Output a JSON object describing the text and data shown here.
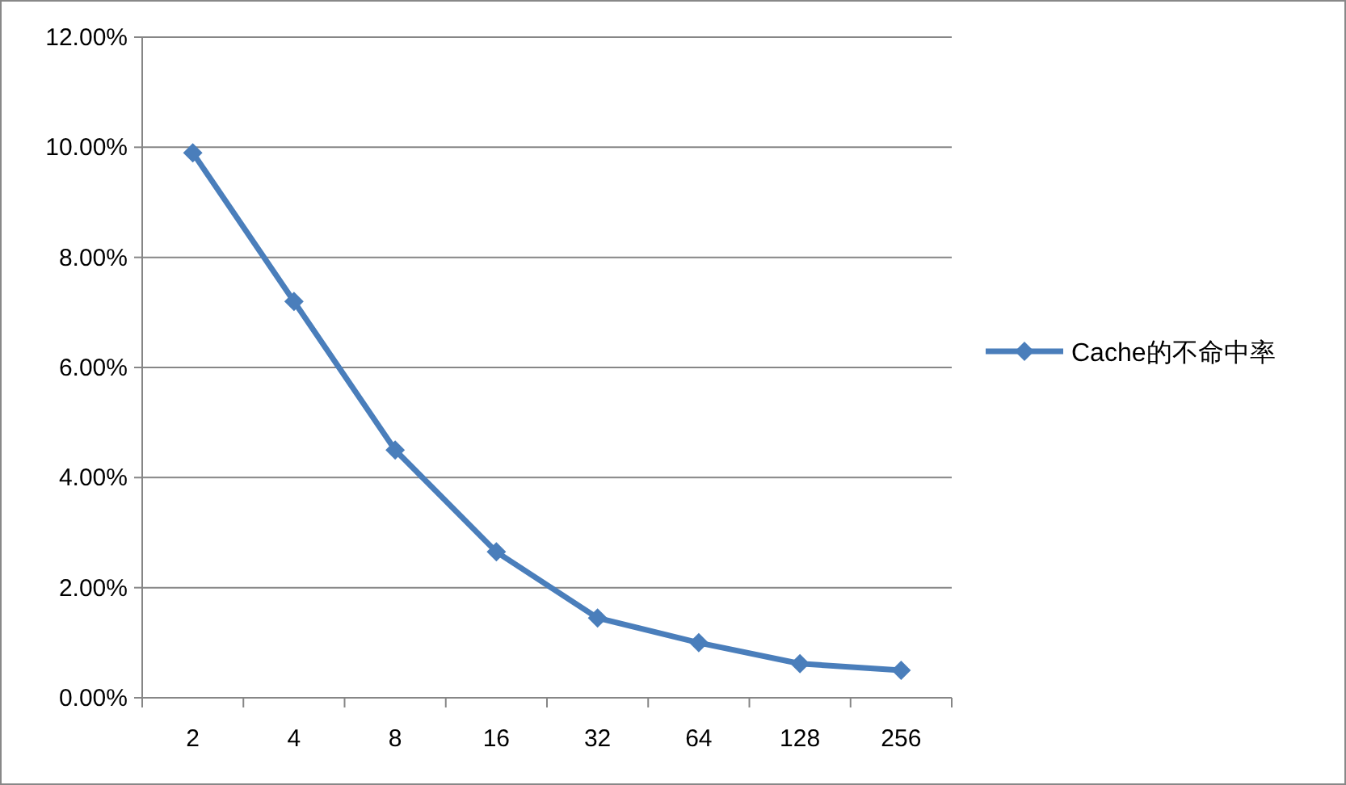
{
  "chart_data": {
    "type": "line",
    "categories": [
      "2",
      "4",
      "8",
      "16",
      "32",
      "64",
      "128",
      "256"
    ],
    "series": [
      {
        "name": "Cache的不命中率",
        "color": "#4a7ebb",
        "values": [
          9.9,
          7.2,
          4.5,
          2.65,
          1.45,
          1.0,
          0.62,
          0.5
        ]
      }
    ],
    "ylim": [
      0,
      12
    ],
    "yticks": [
      {
        "value": 0,
        "label": "0.00%"
      },
      {
        "value": 2,
        "label": "2.00%"
      },
      {
        "value": 4,
        "label": "4.00%"
      },
      {
        "value": 6,
        "label": "6.00%"
      },
      {
        "value": 8,
        "label": "8.00%"
      },
      {
        "value": 10,
        "label": "10.00%"
      },
      {
        "value": 12,
        "label": "12.00%"
      }
    ],
    "grid": "y",
    "legend": "right",
    "marker": "diamond"
  }
}
